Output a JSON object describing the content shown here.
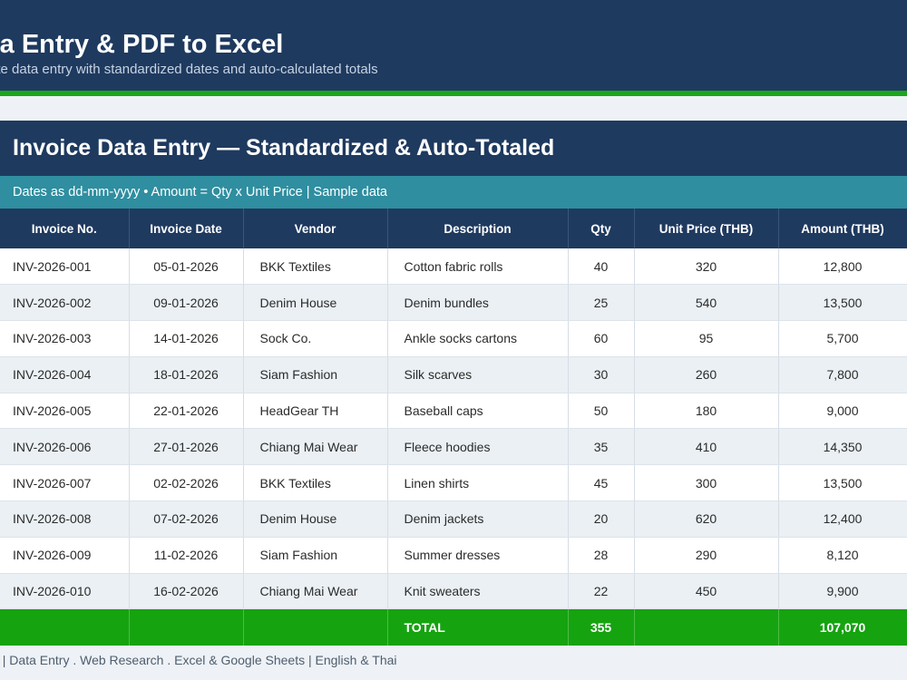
{
  "header": {
    "title": "ta Entry & PDF to Excel",
    "subtitle": "ate data entry with standardized dates and auto-calculated totals"
  },
  "card": {
    "title": "Invoice Data Entry  —  Standardized & Auto-Totaled",
    "info": "Dates as dd-mm-yyyy   •   Amount = Qty x Unit Price   |   Sample data"
  },
  "table": {
    "columns": [
      "Invoice No.",
      "Invoice Date",
      "Vendor",
      "Description",
      "Qty",
      "Unit Price (THB)",
      "Amount (THB)"
    ],
    "rows": [
      [
        "INV-2026-001",
        "05-01-2026",
        "BKK Textiles",
        "Cotton fabric rolls",
        "40",
        "320",
        "12,800"
      ],
      [
        "INV-2026-002",
        "09-01-2026",
        "Denim House",
        "Denim bundles",
        "25",
        "540",
        "13,500"
      ],
      [
        "INV-2026-003",
        "14-01-2026",
        "Sock Co.",
        "Ankle socks cartons",
        "60",
        "95",
        "5,700"
      ],
      [
        "INV-2026-004",
        "18-01-2026",
        "Siam Fashion",
        "Silk scarves",
        "30",
        "260",
        "7,800"
      ],
      [
        "INV-2026-005",
        "22-01-2026",
        "HeadGear TH",
        "Baseball caps",
        "50",
        "180",
        "9,000"
      ],
      [
        "INV-2026-006",
        "27-01-2026",
        "Chiang Mai Wear",
        "Fleece hoodies",
        "35",
        "410",
        "14,350"
      ],
      [
        "INV-2026-007",
        "02-02-2026",
        "BKK Textiles",
        "Linen shirts",
        "45",
        "300",
        "13,500"
      ],
      [
        "INV-2026-008",
        "07-02-2026",
        "Denim House",
        "Denim jackets",
        "20",
        "620",
        "12,400"
      ],
      [
        "INV-2026-009",
        "11-02-2026",
        "Siam Fashion",
        "Summer dresses",
        "28",
        "290",
        "8,120"
      ],
      [
        "INV-2026-010",
        "16-02-2026",
        "Chiang Mai Wear",
        "Knit sweaters",
        "22",
        "450",
        "9,900"
      ]
    ],
    "total": {
      "label": "TOTAL",
      "qty": "355",
      "amount": "107,070"
    }
  },
  "footer": {
    "text": "J.  |  Data Entry . Web Research . Excel & Google Sheets  |  English & Thai"
  },
  "colors": {
    "navy": "#1f3a5f",
    "teal": "#2f8ea0",
    "green": "#16a310"
  }
}
